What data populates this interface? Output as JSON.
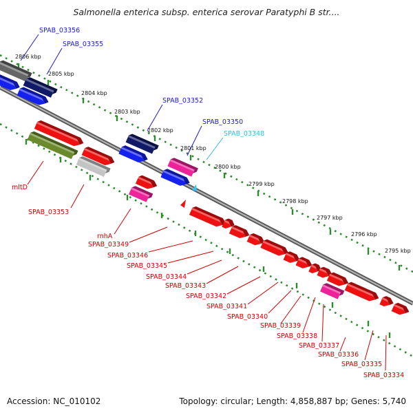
{
  "title": "Salmonella enterica subsp. enterica serovar Paratyphi B str....",
  "footer": {
    "accession": "Accession: NC_010102",
    "topology": "Topology: circular; Length: 4,858,887 bp; Genes: 5,740"
  },
  "colors": {
    "backbone": "#808080",
    "track_dots": "#2f8a2f",
    "label_red": "#d00000",
    "label_blue": "#1a1acc",
    "label_cyan": "#38b8e8",
    "gene_red": "#ee1111",
    "gene_blue": "#1522ee",
    "gene_navy": "#111a66",
    "gene_gray": "#666666",
    "gene_lightgray": "#c4c4c4",
    "gene_olive": "#6b8a2c",
    "gene_magenta": "#ee2299",
    "gene_cyan": "#33c4ee"
  },
  "scale_labels": [
    "2806 kbp",
    "2805 kbp",
    "2804 kbp",
    "2803 kbp",
    "2802 kbp",
    "2801 kbp",
    "2800 kbp",
    "2799 kbp",
    "2798 kbp",
    "2797 kbp",
    "2796 kbp",
    "2795 kbp"
  ],
  "gene_labels": {
    "blue": [
      "SPAB_03356",
      "SPAB_03355",
      "SPAB_03352",
      "SPAB_03350"
    ],
    "cyan": [
      "SPAB_03348"
    ],
    "red": [
      "mltD",
      "SPAB_03353",
      "rnhA",
      "SPAB_03349",
      "SPAB_03346",
      "SPAB_03345",
      "SPAB_03344",
      "SPAB_03343",
      "SPAB_03342",
      "SPAB_03341",
      "SPAB_03340",
      "SPAB_03339",
      "SPAB_03338",
      "SPAB_03337",
      "SPAB_03336",
      "SPAB_03335",
      "SPAB_03334"
    ]
  }
}
